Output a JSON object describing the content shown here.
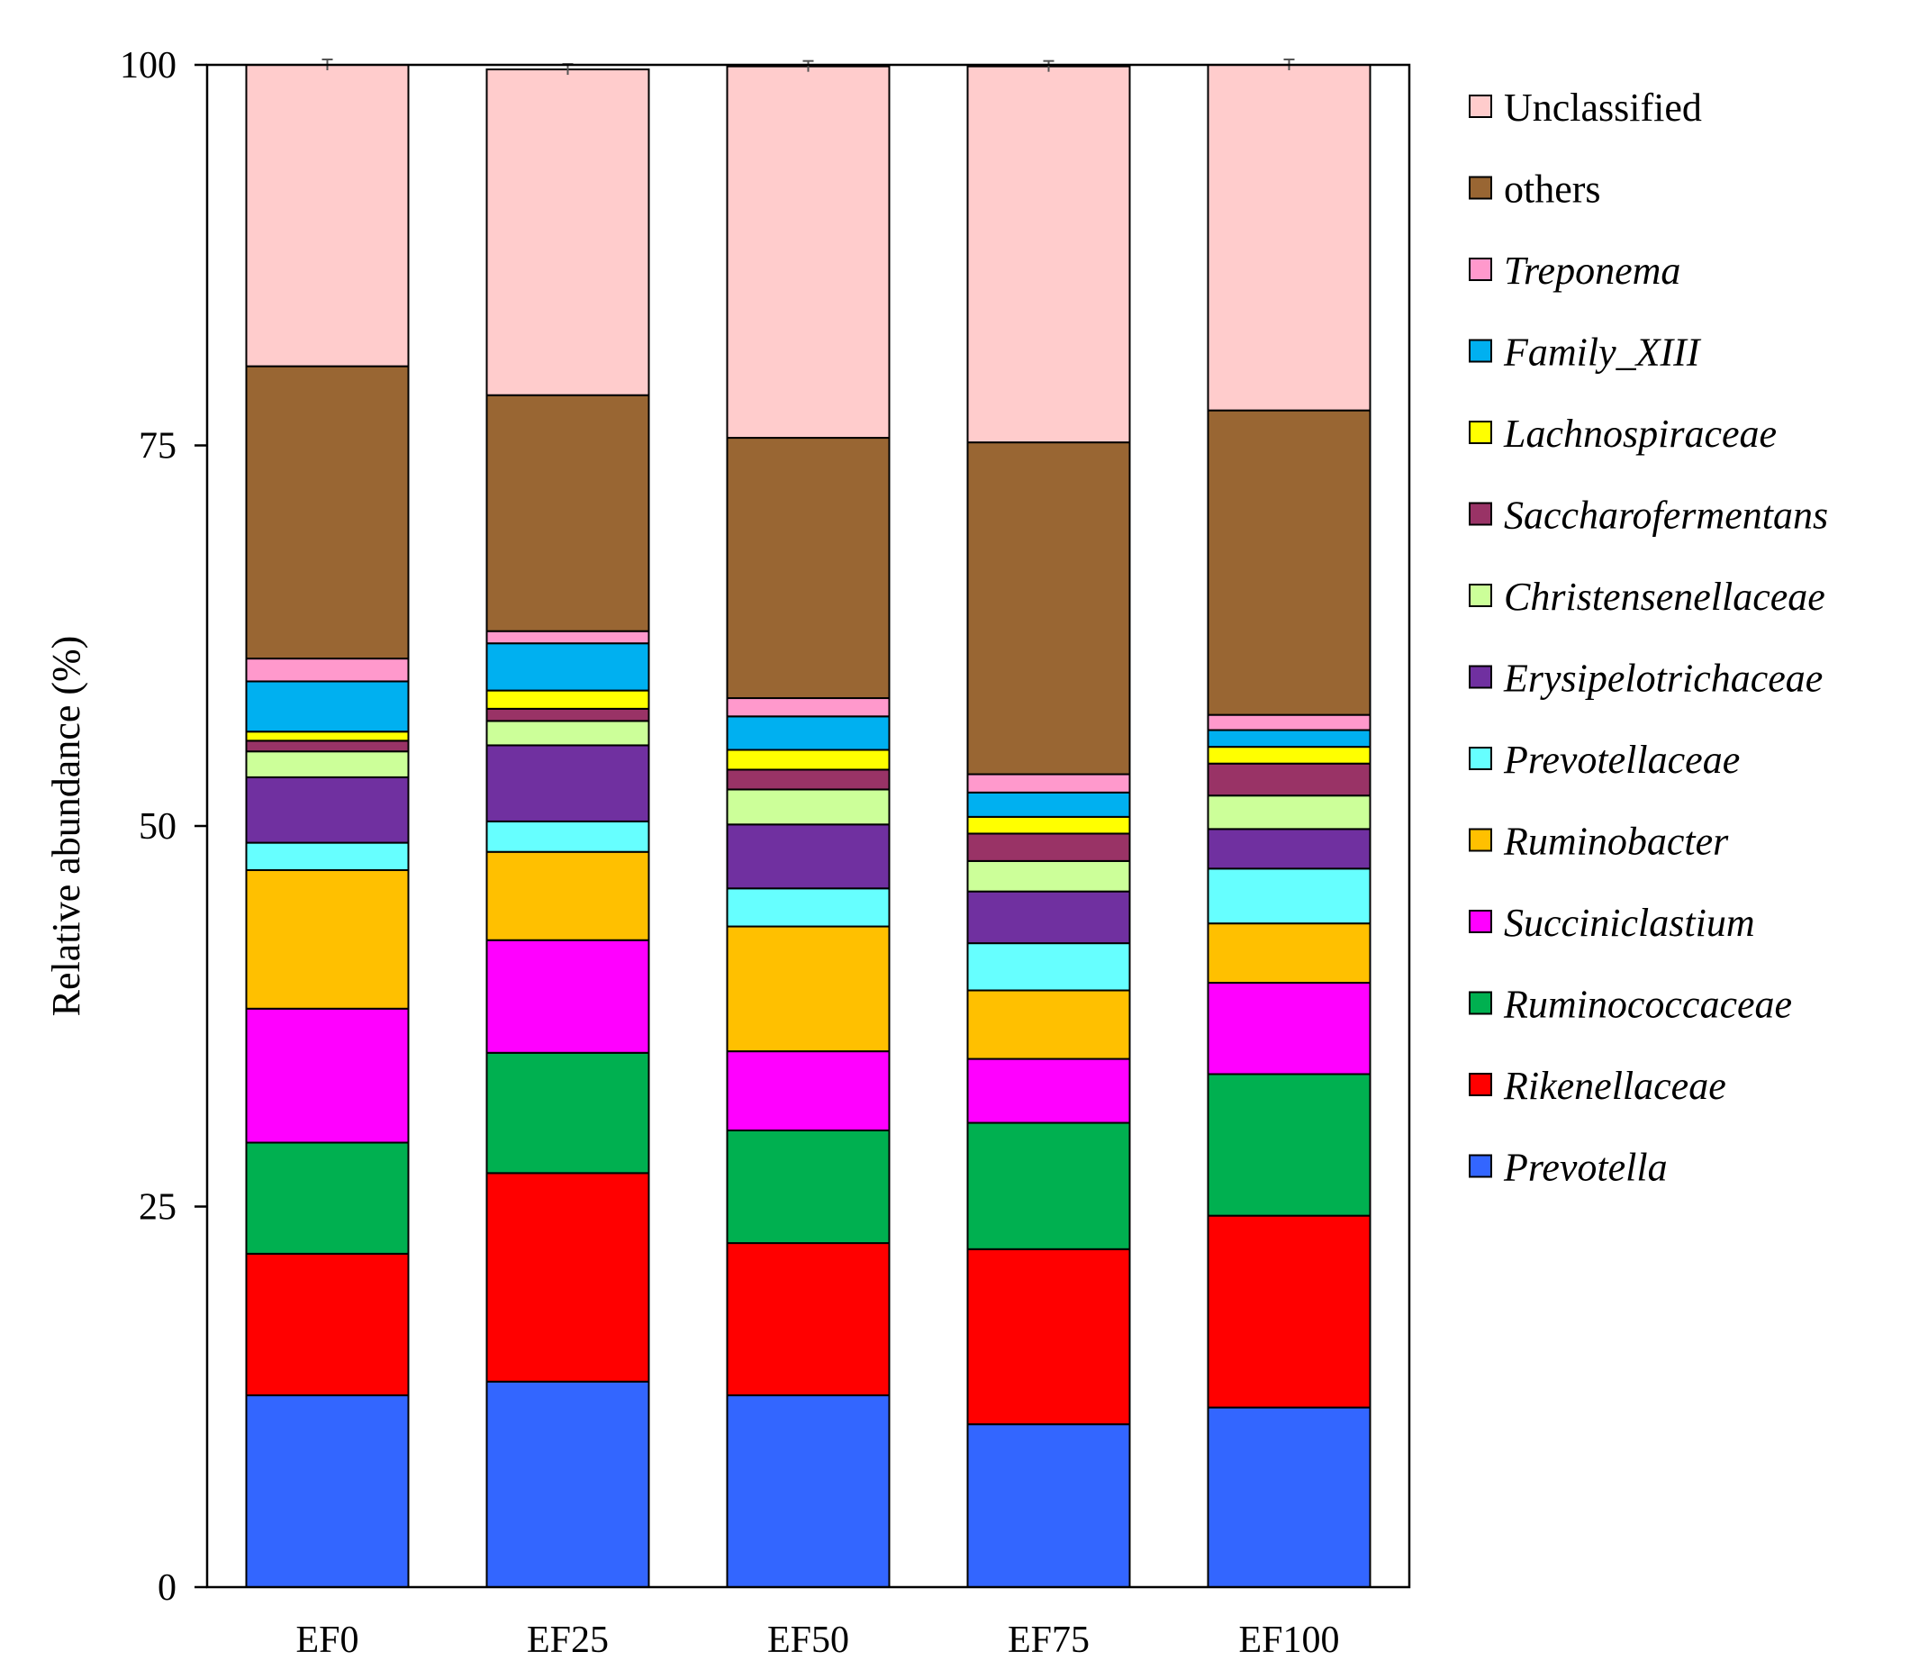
{
  "chart_data": {
    "type": "bar",
    "stacked": true,
    "ylabel": "Relative abundance (%)",
    "xlabel": "",
    "ylim": [
      0,
      100
    ],
    "yticks": [
      0,
      25,
      50,
      75,
      100
    ],
    "categories": [
      "EF0",
      "EF25",
      "EF50",
      "EF75",
      "EF100"
    ],
    "legend_position": "right",
    "series": [
      {
        "name": "Prevotella",
        "italic": true,
        "color": "#3366FF",
        "values": [
          12.6,
          13.5,
          12.6,
          10.7,
          11.8
        ]
      },
      {
        "name": "Rikenellaceae",
        "italic": true,
        "color": "#FF0000",
        "values": [
          9.3,
          13.7,
          10.0,
          11.5,
          12.6
        ]
      },
      {
        "name": "Ruminococcaceae",
        "italic": true,
        "color": "#00B050",
        "values": [
          7.3,
          7.9,
          7.4,
          8.3,
          9.3
        ]
      },
      {
        "name": "Succiniclastium",
        "italic": true,
        "color": "#FF00FF",
        "values": [
          8.8,
          7.4,
          5.2,
          4.2,
          6.0
        ]
      },
      {
        "name": "Ruminobacter",
        "italic": true,
        "color": "#FFC000",
        "values": [
          9.1,
          5.8,
          8.2,
          4.5,
          3.9
        ]
      },
      {
        "name": "Prevotellaceae",
        "italic": true,
        "color": "#66FFFF",
        "values": [
          1.8,
          2.0,
          2.5,
          3.1,
          3.6
        ]
      },
      {
        "name": "Erysipelotrichaceae",
        "italic": true,
        "color": "#7030A0",
        "values": [
          4.3,
          5.0,
          4.2,
          3.4,
          2.6
        ]
      },
      {
        "name": "Christensenellaceae",
        "italic": true,
        "color": "#CCFF99",
        "values": [
          1.7,
          1.6,
          2.3,
          2.0,
          2.2
        ]
      },
      {
        "name": "Saccharofermentans",
        "italic": true,
        "color": "#993366",
        "values": [
          0.7,
          0.8,
          1.3,
          1.8,
          2.1
        ]
      },
      {
        "name": "Lachnospiraceae",
        "italic": true,
        "color": "#FFFF00",
        "values": [
          0.6,
          1.2,
          1.3,
          1.1,
          1.1
        ]
      },
      {
        "name": "Family_XIII",
        "italic": true,
        "color": "#00B0F0",
        "values": [
          3.3,
          3.1,
          2.2,
          1.6,
          1.1
        ]
      },
      {
        "name": "Treponema",
        "italic": true,
        "color": "#FF99CC",
        "values": [
          1.5,
          0.8,
          1.2,
          1.2,
          1.0
        ]
      },
      {
        "name": "others",
        "italic": false,
        "color": "#996633",
        "values": [
          19.2,
          15.5,
          17.1,
          21.8,
          20.0
        ]
      },
      {
        "name": "Unclassified",
        "italic": false,
        "color": "#FFCCCC",
        "values": [
          19.8,
          21.4,
          24.4,
          24.7,
          22.7
        ]
      }
    ]
  }
}
